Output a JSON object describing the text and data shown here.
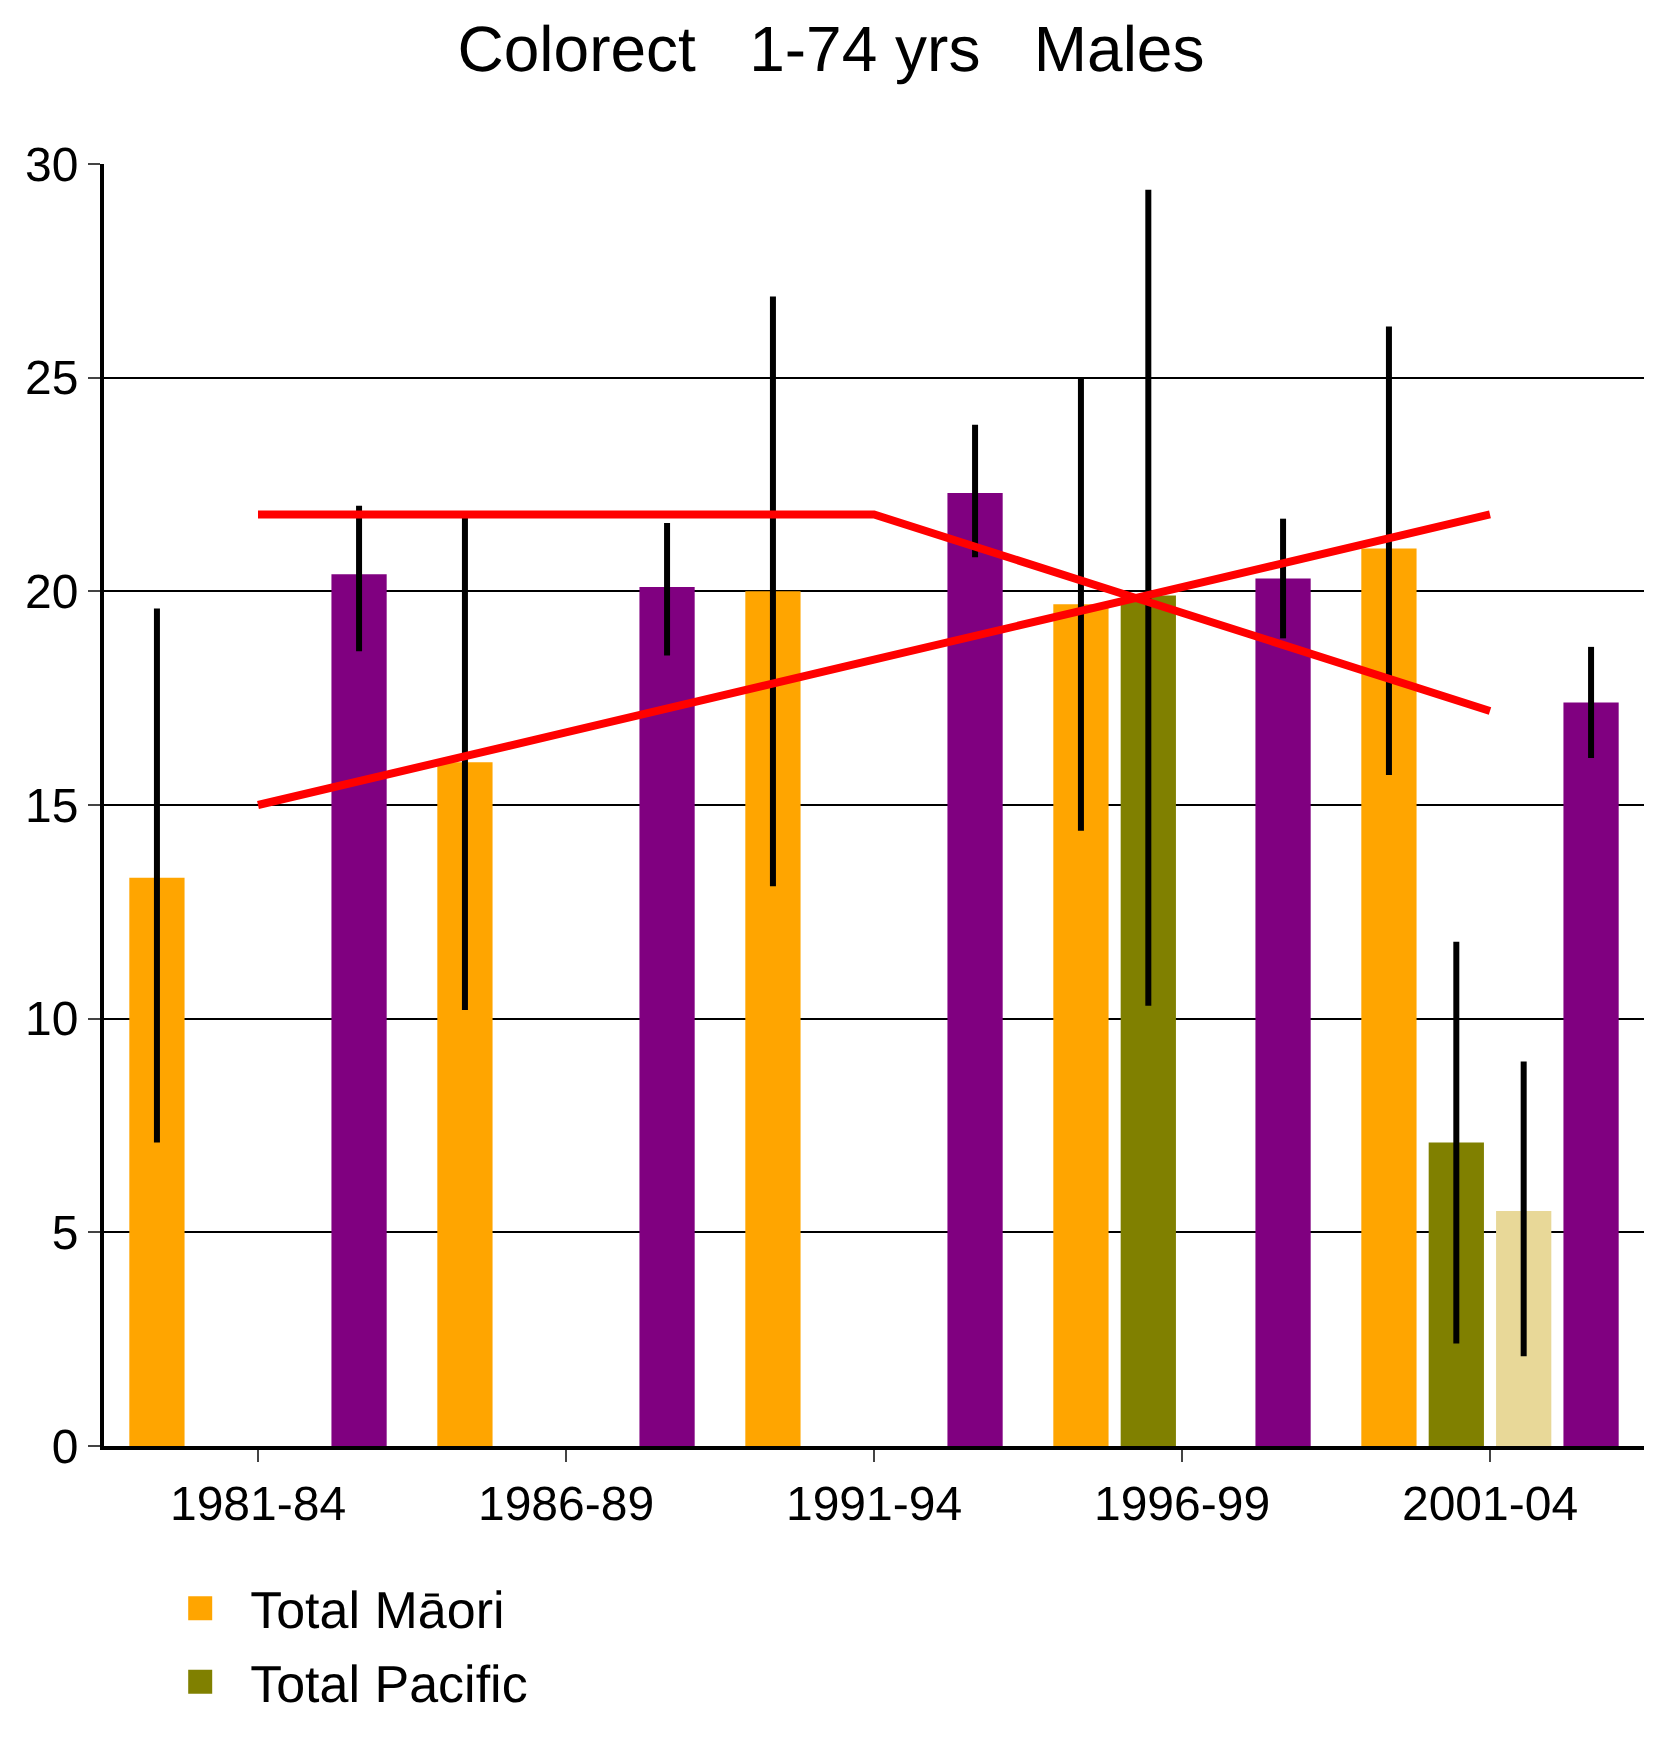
{
  "chart_data": {
    "type": "bar",
    "title": "Colorect   1-74 yrs   Males",
    "categories": [
      "1981-84",
      "1986-89",
      "1991-94",
      "1996-99",
      "2001-04"
    ],
    "series": [
      {
        "name": "Total Māori",
        "color": "#ffa500",
        "values": [
          13.3,
          16.0,
          20.0,
          19.7,
          21.0
        ],
        "errors": [
          [
            7.1,
            19.6
          ],
          [
            10.2,
            21.8
          ],
          [
            13.1,
            26.9
          ],
          [
            14.4,
            25.0
          ],
          [
            15.7,
            26.2
          ]
        ]
      },
      {
        "name": "Total Pacific",
        "color": "#808000",
        "values": [
          null,
          null,
          null,
          19.9,
          7.1
        ],
        "errors": [
          null,
          null,
          null,
          [
            10.3,
            29.4
          ],
          [
            2.4,
            11.8
          ]
        ]
      },
      {
        "color": "#e8d898",
        "values": [
          null,
          null,
          null,
          null,
          5.5
        ],
        "errors": [
          null,
          null,
          null,
          null,
          [
            2.1,
            9.0
          ]
        ]
      },
      {
        "color": "#800080",
        "values": [
          20.4,
          20.1,
          22.3,
          20.3,
          17.4
        ],
        "errors": [
          [
            18.6,
            22.0
          ],
          [
            18.5,
            21.6
          ],
          [
            20.8,
            23.9
          ],
          [
            18.9,
            21.7
          ],
          [
            16.1,
            18.7
          ]
        ]
      },
      {
        "type": "line",
        "color": "#ff0000",
        "values": [
          15.0,
          16.7,
          18.4,
          20.1,
          21.8
        ]
      },
      {
        "type": "line",
        "color": "#ff0000",
        "values": [
          21.8,
          21.8,
          21.8,
          19.5,
          17.2
        ]
      }
    ],
    "ylim": [
      0,
      30
    ],
    "yticks": [
      0,
      5,
      10,
      15,
      20,
      25,
      30
    ],
    "grid": "y",
    "legend": "bottom",
    "line_style": "solid",
    "marker": "none"
  }
}
